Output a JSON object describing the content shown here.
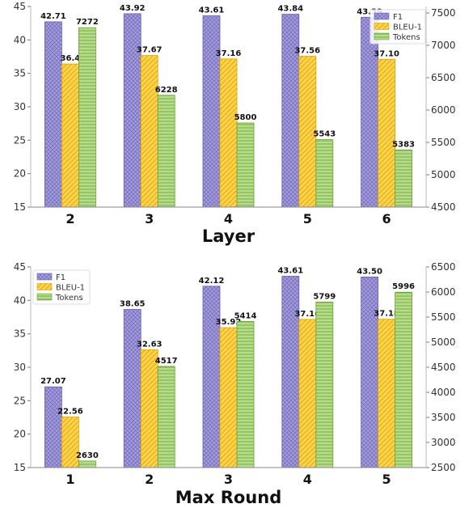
{
  "chart_data": [
    {
      "type": "bar",
      "xlabel": "Layer",
      "categories": [
        "2",
        "3",
        "4",
        "5",
        "6"
      ],
      "y_left_lim": [
        15,
        45
      ],
      "y_left_ticks": [
        15,
        20,
        25,
        30,
        35,
        40,
        45
      ],
      "y_right_lim": [
        4500,
        7600
      ],
      "y_right_ticks": [
        4500,
        5000,
        5500,
        6000,
        6500,
        7000,
        7500
      ],
      "legend_position": "top-right",
      "grid": false,
      "series": [
        {
          "name": "F1",
          "axis": "left",
          "values": [
            42.71,
            43.92,
            43.61,
            43.84,
            43.39
          ],
          "labels": [
            "42.71",
            "43.92",
            "43.61",
            "43.84",
            "43.39"
          ],
          "color": "#9d96d6",
          "edge": "#6a5fb0",
          "pattern": "crosshatch"
        },
        {
          "name": "BLEU-1",
          "axis": "left",
          "values": [
            36.4,
            37.67,
            37.16,
            37.56,
            37.1
          ],
          "labels": [
            "36.4",
            "37.67",
            "37.16",
            "37.56",
            "37.10"
          ],
          "color": "#ffd24d",
          "edge": "#d9a400",
          "pattern": "diagonal"
        },
        {
          "name": "Tokens",
          "axis": "right",
          "values": [
            7272,
            6228,
            5800,
            5543,
            5383
          ],
          "labels": [
            "7272",
            "6228",
            "5800",
            "5543",
            "5383"
          ],
          "color": "#b5dc86",
          "edge": "#6aa13a",
          "pattern": "horizontal"
        }
      ]
    },
    {
      "type": "bar",
      "xlabel": "Max Round",
      "categories": [
        "1",
        "2",
        "3",
        "4",
        "5"
      ],
      "y_left_lim": [
        15,
        45
      ],
      "y_left_ticks": [
        15,
        20,
        25,
        30,
        35,
        40,
        45
      ],
      "y_right_lim": [
        2500,
        6500
      ],
      "y_right_ticks": [
        2500,
        3000,
        3500,
        4000,
        4500,
        5000,
        5500,
        6000,
        6500
      ],
      "legend_position": "top-left",
      "grid": false,
      "series": [
        {
          "name": "F1",
          "axis": "left",
          "values": [
            27.07,
            38.65,
            42.12,
            43.61,
            43.5
          ],
          "labels": [
            "27.07",
            "38.65",
            "42.12",
            "43.61",
            "43.50"
          ],
          "color": "#9d96d6",
          "edge": "#6a5fb0",
          "pattern": "crosshatch"
        },
        {
          "name": "BLEU-1",
          "axis": "left",
          "values": [
            22.56,
            32.63,
            35.92,
            37.16,
            37.18
          ],
          "labels": [
            "22.56",
            "32.63",
            "35.92",
            "37.16",
            "37.18"
          ],
          "color": "#ffd24d",
          "edge": "#d9a400",
          "pattern": "diagonal"
        },
        {
          "name": "Tokens",
          "axis": "right",
          "values": [
            2630,
            4517,
            5414,
            5799,
            5996
          ],
          "labels": [
            "2630",
            "4517",
            "5414",
            "5799",
            "5996"
          ],
          "color": "#b5dc86",
          "edge": "#6aa13a",
          "pattern": "horizontal"
        }
      ]
    }
  ]
}
